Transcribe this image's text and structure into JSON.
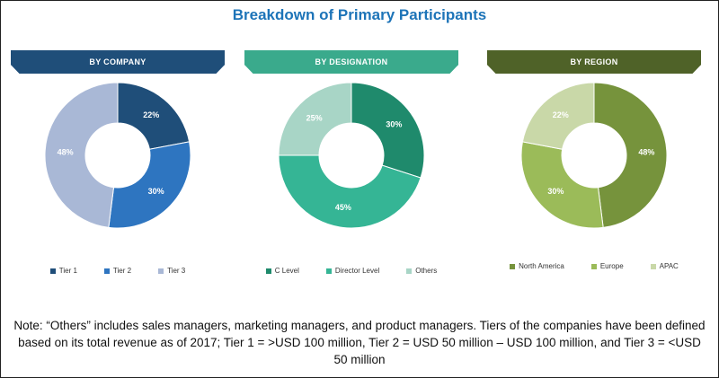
{
  "title": "Breakdown of Primary Participants",
  "note": "Note: “Others” includes sales managers, marketing managers, and product managers. Tiers of the companies have been defined based on its total revenue as of 2017; Tier 1 = >USD 100 million, Tier 2 = USD 50 million – USD 100 million, and Tier 3 = <USD 50 million",
  "chart_data": [
    {
      "type": "pie",
      "title": "BY COMPANY",
      "header_color": "#1f4e79",
      "categories": [
        "Tier 1",
        "Tier 2",
        "Tier 3"
      ],
      "values": [
        22,
        30,
        48
      ],
      "labels": [
        "22%",
        "30%",
        "48%"
      ],
      "colors": [
        "#1f4e79",
        "#2e75c0",
        "#a9b8d6"
      ]
    },
    {
      "type": "pie",
      "title": "BY DESIGNATION",
      "header_color": "#3aaa8c",
      "categories": [
        "C Level",
        "Director Level",
        "Others"
      ],
      "values": [
        30,
        45,
        25
      ],
      "labels": [
        "30%",
        "45%",
        "25%"
      ],
      "colors": [
        "#1f8a6c",
        "#35b595",
        "#a8d5c6"
      ]
    },
    {
      "type": "pie",
      "title": "BY REGION",
      "header_color": "#4f6228",
      "categories": [
        "North America",
        "Europe",
        "APAC"
      ],
      "values": [
        48,
        30,
        22
      ],
      "labels": [
        "48%",
        "30%",
        "22%"
      ],
      "colors": [
        "#76933c",
        "#9bbb59",
        "#c9d8a8"
      ]
    }
  ]
}
